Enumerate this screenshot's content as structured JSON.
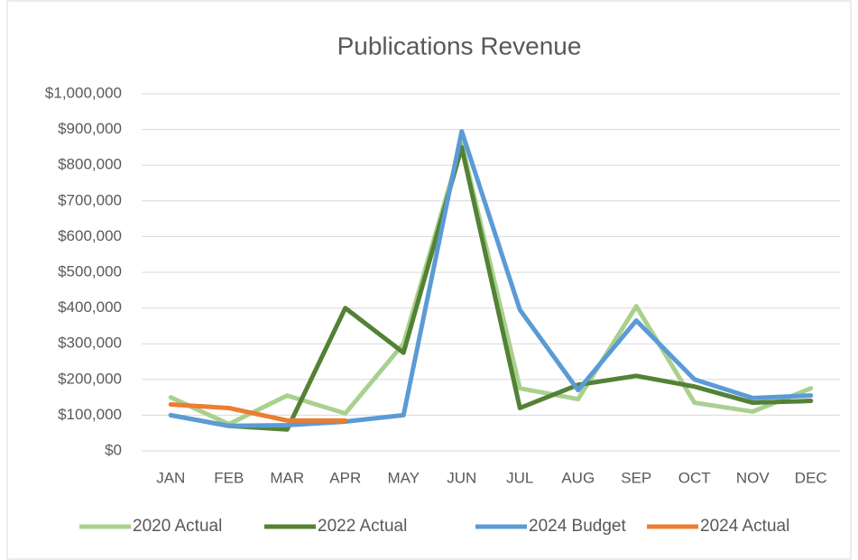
{
  "chart_data": {
    "type": "line",
    "title": "Publications Revenue",
    "categories": [
      "JAN",
      "FEB",
      "MAR",
      "APR",
      "MAY",
      "JUN",
      "JUL",
      "AUG",
      "SEP",
      "OCT",
      "NOV",
      "DEC"
    ],
    "series": [
      {
        "name": "2020 Actual",
        "color": "#a9d18e",
        "values": [
          150000,
          75000,
          155000,
          105000,
          300000,
          860000,
          175000,
          145000,
          405000,
          135000,
          110000,
          175000
        ]
      },
      {
        "name": "2022 Actual",
        "color": "#548235",
        "values": [
          100000,
          70000,
          60000,
          400000,
          275000,
          850000,
          120000,
          185000,
          210000,
          180000,
          135000,
          140000
        ]
      },
      {
        "name": "2024 Budget",
        "color": "#5b9bd5",
        "values": [
          100000,
          70000,
          72000,
          82000,
          100000,
          895000,
          395000,
          170000,
          365000,
          200000,
          148000,
          155000
        ]
      },
      {
        "name": "2024 Actual",
        "color": "#ed7d31",
        "values": [
          130000,
          120000,
          85000,
          85000,
          null,
          null,
          null,
          null,
          null,
          null,
          null,
          null
        ]
      }
    ],
    "ylim": [
      0,
      1000000
    ],
    "yticks": [
      {
        "value": 0,
        "label": "$0"
      },
      {
        "value": 100000,
        "label": "$100,000"
      },
      {
        "value": 200000,
        "label": "$200,000"
      },
      {
        "value": 300000,
        "label": "$300,000"
      },
      {
        "value": 400000,
        "label": "$400,000"
      },
      {
        "value": 500000,
        "label": "$500,000"
      },
      {
        "value": 600000,
        "label": "$600,000"
      },
      {
        "value": 700000,
        "label": "$700,000"
      },
      {
        "value": 800000,
        "label": "$800,000"
      },
      {
        "value": 900000,
        "label": "$900,000"
      },
      {
        "value": 1000000,
        "label": "$1,000,000"
      }
    ],
    "grid": true,
    "legend": "bottom"
  }
}
